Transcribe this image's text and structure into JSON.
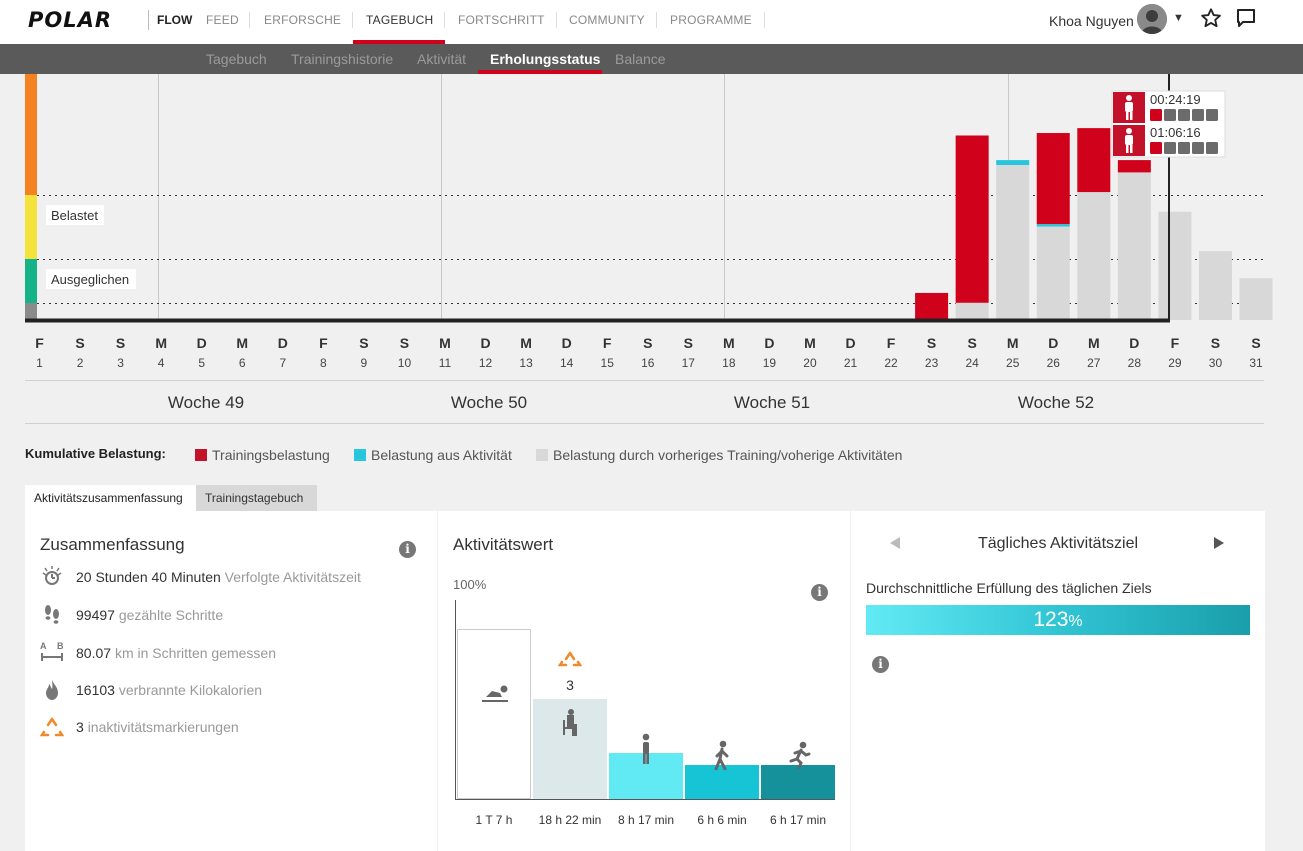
{
  "brand": {
    "logo": "POLAR",
    "app": "FLOW"
  },
  "nav": {
    "items": [
      "FEED",
      "ERFORSCHE",
      "TAGEBUCH",
      "FORTSCHRITT",
      "COMMUNITY",
      "PROGRAMME"
    ],
    "active": "TAGEBUCH"
  },
  "user": {
    "name": "Khoa Nguyen"
  },
  "subnav": {
    "items": [
      "Tagebuch",
      "Trainingshistorie",
      "Aktivität",
      "Erholungsstatus",
      "Balance"
    ],
    "active": "Erholungsstatus"
  },
  "colors": {
    "training": "#d0021b",
    "activity": "#27c6dc",
    "previous": "#d8d8d8",
    "accent": "#d0021b"
  },
  "chart_data": {
    "type": "bar",
    "title": "Erholungsstatus",
    "zones": [
      "Belastet",
      "Ausgeglichen"
    ],
    "days": [
      {
        "l": "F",
        "n": "1"
      },
      {
        "l": "S",
        "n": "2"
      },
      {
        "l": "S",
        "n": "3"
      },
      {
        "l": "M",
        "n": "4"
      },
      {
        "l": "D",
        "n": "5"
      },
      {
        "l": "M",
        "n": "6"
      },
      {
        "l": "D",
        "n": "7"
      },
      {
        "l": "F",
        "n": "8"
      },
      {
        "l": "S",
        "n": "9"
      },
      {
        "l": "S",
        "n": "10"
      },
      {
        "l": "M",
        "n": "11"
      },
      {
        "l": "D",
        "n": "12"
      },
      {
        "l": "M",
        "n": "13"
      },
      {
        "l": "D",
        "n": "14"
      },
      {
        "l": "F",
        "n": "15"
      },
      {
        "l": "S",
        "n": "16"
      },
      {
        "l": "S",
        "n": "17"
      },
      {
        "l": "M",
        "n": "18"
      },
      {
        "l": "D",
        "n": "19"
      },
      {
        "l": "M",
        "n": "20"
      },
      {
        "l": "D",
        "n": "21"
      },
      {
        "l": "F",
        "n": "22"
      },
      {
        "l": "S",
        "n": "23"
      },
      {
        "l": "S",
        "n": "24"
      },
      {
        "l": "M",
        "n": "25"
      },
      {
        "l": "D",
        "n": "26"
      },
      {
        "l": "M",
        "n": "27"
      },
      {
        "l": "D",
        "n": "28"
      },
      {
        "l": "F",
        "n": "29",
        "today": true
      },
      {
        "l": "S",
        "n": "30"
      },
      {
        "l": "S",
        "n": "31"
      }
    ],
    "weeks": [
      "Woche 49",
      "Woche 50",
      "Woche 51",
      "Woche 52"
    ],
    "ylim": [
      0,
      100
    ],
    "series": [
      {
        "name": "Trainingsbelastung",
        "values": [
          0,
          0,
          0,
          0,
          0,
          0,
          0,
          0,
          0,
          0,
          0,
          0,
          0,
          0,
          0,
          0,
          0,
          0,
          0,
          0,
          0,
          0,
          11,
          68,
          0,
          37,
          26,
          5,
          0,
          0,
          0
        ]
      },
      {
        "name": "Belastung aus Aktivität",
        "values": [
          0,
          0,
          0,
          0,
          0,
          0,
          0,
          0,
          0,
          0,
          0,
          0,
          0,
          0,
          0,
          0,
          0,
          0,
          0,
          0,
          0,
          0,
          0,
          0,
          2,
          1,
          0,
          0,
          0,
          0,
          0
        ]
      },
      {
        "name": "Belastung durch vorheriges Training/voherige Aktivitäten",
        "values": [
          0,
          0,
          0,
          0,
          0,
          0,
          0,
          0,
          0,
          0,
          0,
          0,
          0,
          0,
          0,
          0,
          0,
          0,
          0,
          0,
          0,
          0,
          0,
          7,
          63,
          38,
          52,
          60,
          44,
          28,
          17
        ]
      }
    ],
    "tooltip": [
      {
        "time": "00:24:19",
        "level": 1
      },
      {
        "time": "01:06:16",
        "level": 1
      }
    ]
  },
  "legend": {
    "title": "Kumulative Belastung:",
    "items": [
      "Trainingsbelastung",
      "Belastung aus Aktivität",
      "Belastung durch vorheriges Training/voherige Aktivitäten"
    ]
  },
  "tabs": [
    "Aktivitätszusammenfassung",
    "Trainingstagebuch"
  ],
  "summary": {
    "title": "Zusammenfassung",
    "rows": [
      {
        "icon": "activity-time-icon",
        "value": "20 Stunden 40 Minuten",
        "label": "Verfolgte Aktivitätszeit"
      },
      {
        "icon": "steps-icon",
        "value": "99497",
        "label": "gezählte Schritte"
      },
      {
        "icon": "distance-icon",
        "value": "80.07",
        "label": "km in Schritten gemessen"
      },
      {
        "icon": "calories-icon",
        "value": "16103",
        "label": "verbrannte Kilokalorien"
      },
      {
        "icon": "inactivity-icon",
        "value": "3",
        "label": "inaktivitätsmarkierungen"
      }
    ]
  },
  "activity": {
    "title": "Aktivitätswert",
    "axis_top": "100%",
    "inactivity_count": "3",
    "bars": [
      {
        "label": "1 T 7 h",
        "value": 85,
        "color": "#ffffff"
      },
      {
        "label": "18 h 22 min",
        "value": 50,
        "color": "#dce8e9"
      },
      {
        "label": "8 h 17 min",
        "value": 23,
        "color": "#62eaf4"
      },
      {
        "label": "6 h 6 min",
        "value": 17,
        "color": "#17c4d6"
      },
      {
        "label": "6 h 17 min",
        "value": 17,
        "color": "#14919b"
      }
    ]
  },
  "goal": {
    "title": "Tägliches Aktivitätsziel",
    "subtitle": "Durchschnittliche Erfüllung des täglichen Ziels",
    "value": "123",
    "unit": "%",
    "percent": 123
  }
}
